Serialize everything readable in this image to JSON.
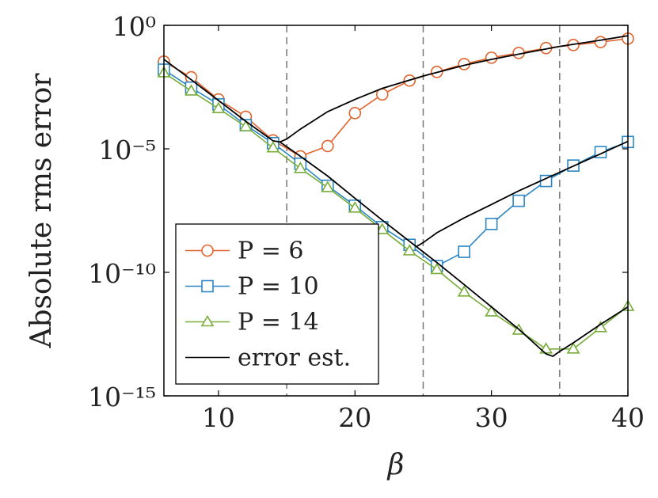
{
  "chart_data": {
    "type": "line",
    "xlabel": "β",
    "ylabel": "Absolute rms error",
    "x": [
      6,
      8,
      10,
      12,
      14,
      16,
      18,
      20,
      22,
      24,
      26,
      28,
      30,
      32,
      34,
      36,
      38,
      40
    ],
    "series": [
      {
        "name": "P = 6",
        "color": "#e0642e",
        "marker": "circle",
        "values": [
          0.034,
          0.0079,
          0.001,
          0.0002,
          2.2e-05,
          5e-06,
          1.3e-05,
          0.00028,
          0.0016,
          0.0058,
          0.013,
          0.027,
          0.049,
          0.076,
          0.12,
          0.16,
          0.21,
          0.29
        ]
      },
      {
        "name": "P = 10",
        "color": "#2c86c4",
        "marker": "square",
        "values": [
          0.016,
          0.003,
          0.00063,
          9.1e-05,
          1.7e-05,
          2.5e-06,
          3.2e-07,
          5e-08,
          6.8e-09,
          1.3e-09,
          1.8e-10,
          6.8e-10,
          9.1e-09,
          7.9e-08,
          5e-07,
          2.1e-06,
          7.4e-06,
          1.9e-05
        ]
      },
      {
        "name": "P = 14",
        "color": "#78ad3a",
        "marker": "triangle",
        "values": [
          0.012,
          0.0022,
          0.00043,
          7.9e-05,
          1.1e-05,
          1.6e-06,
          2.7e-07,
          4e-08,
          5.4e-09,
          7.4e-10,
          1.3e-10,
          1.6e-11,
          2.5e-12,
          4.6e-13,
          7.9e-14,
          7.9e-14,
          5.8e-13,
          4.2e-12
        ]
      },
      {
        "name": "error est.",
        "color": "#000000",
        "marker": null,
        "x": [
          6,
          8,
          10,
          12,
          14,
          14.5,
          15,
          16,
          18,
          20,
          22,
          25,
          28,
          30,
          32,
          35,
          38,
          40,
          null,
          14.5,
          16,
          18,
          20,
          22,
          24,
          24.5,
          25,
          26,
          28,
          30,
          32,
          34,
          36,
          38,
          40,
          null,
          24.5,
          26,
          28,
          30,
          32,
          34,
          34.5,
          35,
          36,
          38,
          40
        ],
        "values": [
          0.042,
          0.0063,
          0.00091,
          0.00013,
          2.1e-05,
          1.9e-05,
          2.5e-05,
          6.3e-05,
          0.00032,
          0.001,
          0.0028,
          0.0089,
          0.024,
          0.042,
          0.068,
          0.14,
          0.25,
          0.38,
          null,
          1.9e-05,
          5e-06,
          7.9e-07,
          1e-07,
          1.3e-08,
          1.8e-09,
          1.1e-09,
          1.6e-09,
          4e-09,
          1.6e-08,
          5.6e-08,
          2e-07,
          6.3e-07,
          2e-06,
          6.3e-06,
          2e-05,
          null,
          1.1e-09,
          2.5e-10,
          3.2e-11,
          4e-12,
          5e-13,
          5e-14,
          4e-14,
          6.3e-14,
          1.4e-13,
          7.9e-13,
          4e-12
        ]
      }
    ],
    "xlim": [
      6,
      40
    ],
    "xticks": [
      10,
      20,
      30,
      40
    ],
    "ylim": [
      1e-15,
      1
    ],
    "yticks": [
      {
        "value": 1,
        "label": "10⁰"
      },
      {
        "value": 1e-05,
        "label": "10⁻⁵"
      },
      {
        "value": 1e-10,
        "label": "10⁻¹⁰"
      },
      {
        "value": 1e-15,
        "label": "10⁻¹⁵"
      }
    ],
    "log_y": true,
    "vlines": [
      15,
      25,
      35
    ],
    "legend": "lower left"
  }
}
